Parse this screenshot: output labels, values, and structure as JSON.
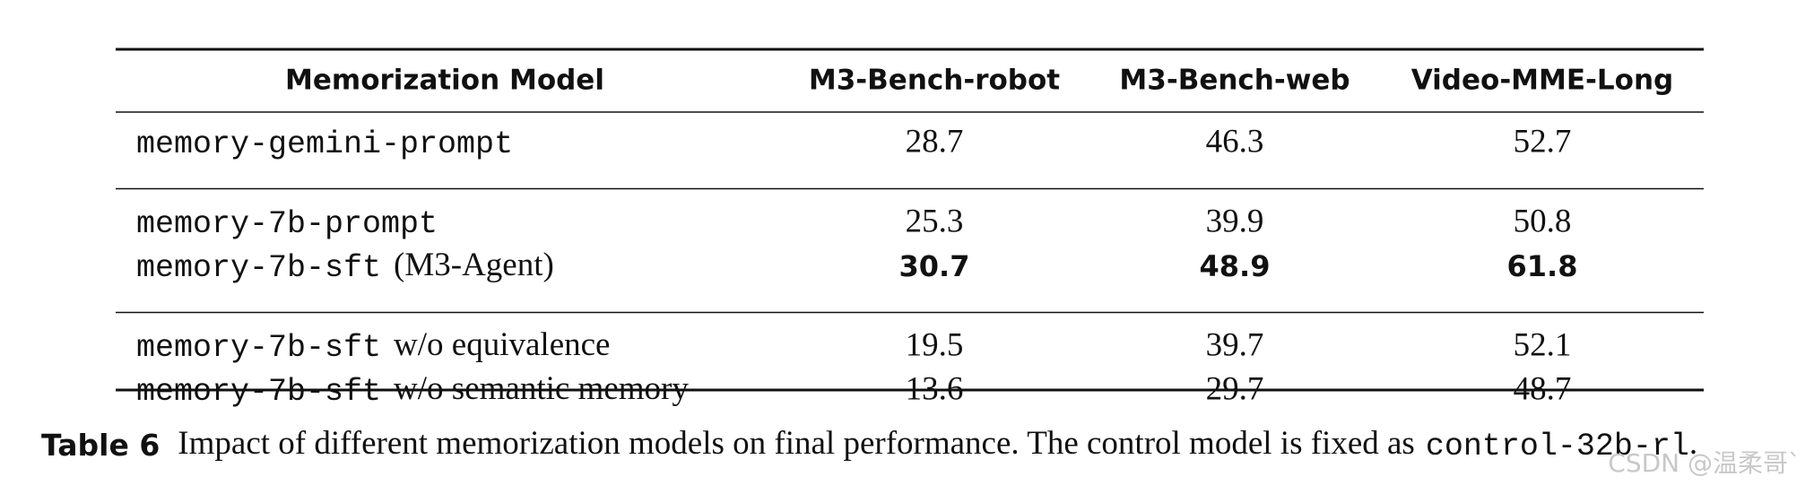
{
  "table": {
    "header": [
      "Memorization Model",
      "M3-Bench-robot",
      "M3-Bench-web",
      "Video-MME-Long"
    ],
    "groups": [
      [
        {
          "model_code": "memory-gemini-prompt",
          "values": [
            28.7,
            46.3,
            52.7
          ]
        }
      ],
      [
        {
          "model_code": "memory-7b-prompt",
          "values": [
            25.3,
            39.9,
            50.8
          ]
        },
        {
          "model_code": "memory-7b-sft",
          "model_text": "(M3-Agent)",
          "values": [
            30.7,
            48.9,
            61.8
          ],
          "bold": true
        }
      ],
      [
        {
          "model_code": "memory-7b-sft",
          "model_text": "w/o equivalence",
          "values": [
            19.5,
            39.7,
            52.1
          ]
        },
        {
          "model_code": "memory-7b-sft",
          "model_text": "w/o semantic memory",
          "values": [
            13.6,
            29.7,
            48.7
          ]
        }
      ]
    ]
  },
  "caption": {
    "label": "Table 6",
    "text": "Impact of different memorization models on final performance. The control model is fixed as",
    "code": "control-32b-rl",
    "end": "."
  },
  "watermark": "CSDN @温柔哥`"
}
